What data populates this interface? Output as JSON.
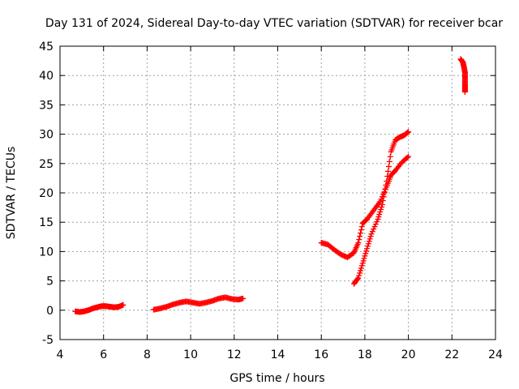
{
  "chart_data": {
    "type": "scatter",
    "title": "Day 131 of 2024, Sidereal Day-to-day VTEC variation (SDTVAR) for receiver bcar",
    "xlabel": "GPS time / hours",
    "ylabel": "SDTVAR / TECUs",
    "xlim": [
      4,
      24
    ],
    "ylim": [
      -5,
      45
    ],
    "xticks": [
      4,
      6,
      8,
      10,
      12,
      14,
      16,
      18,
      20,
      22,
      24
    ],
    "yticks": [
      -5,
      0,
      5,
      10,
      15,
      20,
      25,
      30,
      35,
      40,
      45
    ],
    "grid": true,
    "marker": "plus",
    "series_color": "#ff0000",
    "series": [
      {
        "name": "segment-1",
        "x": [
          4.7,
          4.9,
          5.1,
          5.3,
          5.5,
          5.7,
          5.9,
          6.1,
          6.3,
          6.5,
          6.7,
          6.9
        ],
        "y": [
          -0.2,
          -0.3,
          -0.2,
          0.0,
          0.3,
          0.5,
          0.7,
          0.7,
          0.6,
          0.5,
          0.6,
          0.9
        ]
      },
      {
        "name": "segment-2",
        "x": [
          8.3,
          8.6,
          8.9,
          9.2,
          9.5,
          9.8,
          10.1,
          10.4,
          10.7,
          11.0,
          11.3,
          11.6,
          11.9,
          12.2,
          12.4
        ],
        "y": [
          0.1,
          0.3,
          0.6,
          1.0,
          1.3,
          1.5,
          1.3,
          1.1,
          1.3,
          1.6,
          2.0,
          2.2,
          1.9,
          1.8,
          2.0
        ]
      },
      {
        "name": "segment-3",
        "x": [
          16.0,
          16.3,
          16.6,
          16.9,
          17.2,
          17.5,
          17.7,
          17.9,
          18.1,
          18.4,
          18.7,
          19.0,
          19.2,
          19.4,
          19.7,
          20.0
        ],
        "y": [
          11.5,
          11.2,
          10.3,
          9.5,
          9.0,
          9.8,
          11.5,
          14.8,
          15.5,
          17.0,
          18.5,
          21.0,
          23.0,
          23.8,
          25.2,
          26.2
        ]
      },
      {
        "name": "segment-4",
        "x": [
          17.5,
          17.7,
          17.9,
          18.1,
          18.3,
          18.6,
          18.8,
          19.0,
          19.2,
          19.4,
          19.6,
          19.8,
          20.0
        ],
        "y": [
          4.5,
          5.5,
          8.0,
          10.5,
          13.0,
          15.5,
          18.0,
          22.0,
          27.0,
          29.0,
          29.5,
          29.8,
          30.4
        ]
      },
      {
        "name": "segment-5",
        "x": [
          22.4,
          22.5,
          22.55,
          22.6,
          22.6,
          22.6,
          22.6,
          22.6
        ],
        "y": [
          42.8,
          42.3,
          41.5,
          40.5,
          39.5,
          38.5,
          37.8,
          37.2
        ]
      }
    ]
  }
}
